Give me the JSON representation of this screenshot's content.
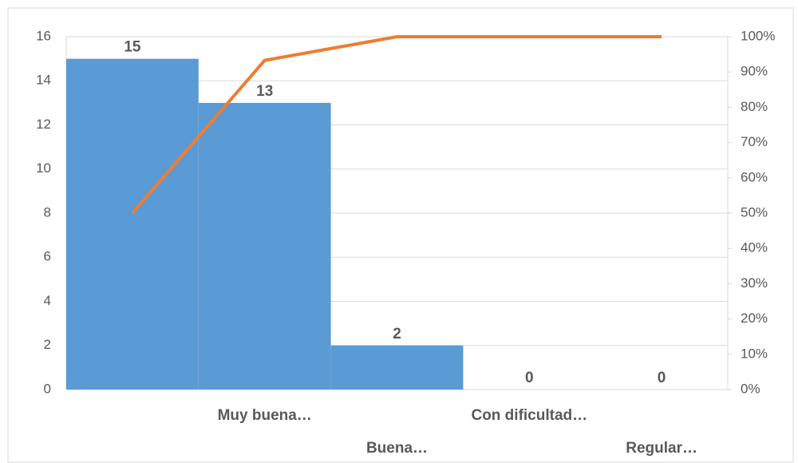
{
  "chart_data": {
    "type": "pareto",
    "categories": [
      null,
      "Muy buena…",
      "Buena…",
      "Con dificultad…",
      "Regular…"
    ],
    "series": [
      {
        "type": "bar",
        "color": "#5b9bd5",
        "values": [
          15,
          13,
          2,
          0,
          0
        ]
      },
      {
        "type": "line",
        "color": "#ed7d31",
        "axis": "y2",
        "values": [
          50,
          93.3,
          100,
          100,
          100
        ]
      }
    ],
    "ylim": [
      0,
      16
    ],
    "yticks": [
      0,
      2,
      4,
      6,
      8,
      10,
      12,
      14,
      16
    ],
    "y2lim": [
      0,
      100
    ],
    "y2ticks": [
      {
        "value": 0,
        "label": "0%"
      },
      {
        "value": 10,
        "label": "10%"
      },
      {
        "value": 20,
        "label": "20%"
      },
      {
        "value": 30,
        "label": "30%"
      },
      {
        "value": 40,
        "label": "40%"
      },
      {
        "value": 50,
        "label": "50%"
      },
      {
        "value": 60,
        "label": "60%"
      },
      {
        "value": 70,
        "label": "70%"
      },
      {
        "value": 80,
        "label": "80%"
      },
      {
        "value": 90,
        "label": "90%"
      },
      {
        "value": 100,
        "label": "100%"
      }
    ],
    "grid": true
  }
}
